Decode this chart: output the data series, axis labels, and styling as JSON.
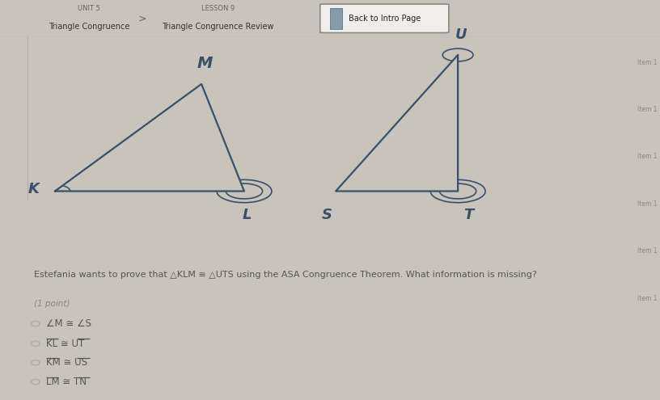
{
  "fig_bg": "#c8c4bc",
  "header_bg": "#ccc8c0",
  "header_line_color": "#888880",
  "main_bg": "#ddd8cc",
  "sidebar_bg": "#c8c4bc",
  "triangle_color": "#3a5068",
  "label_color": "#3a5068",
  "text_color": "#666660",
  "question_color": "#555550",
  "title_bar": {
    "unit_label": "UNIT 5",
    "unit_sub": "Triangle Congruence",
    "arrow": ">",
    "lesson_label": "LESSON 9",
    "lesson_sub": "Triangle Congruence Review",
    "button_text": "Back to Intro Page"
  },
  "tri1": {
    "K": [
      0.09,
      0.575
    ],
    "L": [
      0.4,
      0.575
    ],
    "M": [
      0.33,
      0.87
    ]
  },
  "tri2": {
    "U": [
      0.75,
      0.95
    ],
    "T": [
      0.75,
      0.575
    ],
    "S": [
      0.55,
      0.575
    ]
  },
  "sidebar_items": [
    "Item 1",
    "Item 1",
    "Item 1",
    "Item 1",
    "Item 1",
    "Item 1"
  ],
  "question_text": "Estefania wants to prove that △KLM ≅ △UTS using the ASA Congruence Theorem. What information is missing?",
  "point_label": "(1 point)",
  "choices": [
    "∠M ≅ ∠S",
    "KL ≅ UT",
    "KM ≅ US",
    "LM ≅ TN"
  ],
  "choices_overline": [
    false,
    true,
    true,
    true
  ]
}
